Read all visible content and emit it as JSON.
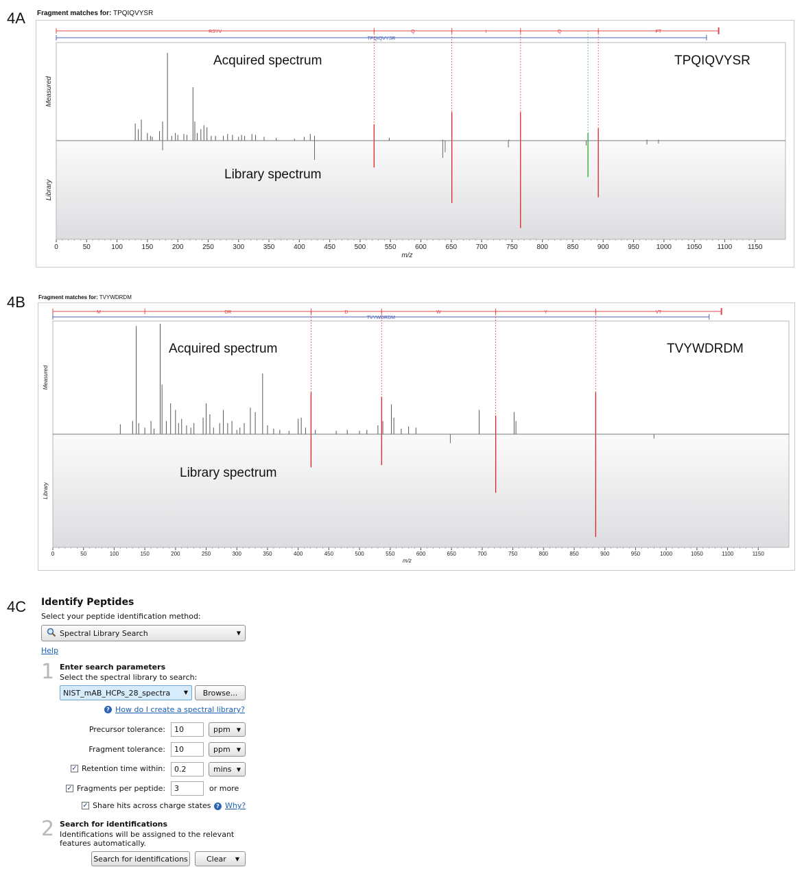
{
  "panels": {
    "a": {
      "label": "4A",
      "fragment_title_prefix": "Fragment matches for:",
      "peptide": "TPQIQVYSR",
      "acquired_label": "Acquired spectrum",
      "library_label": "Library spectrum",
      "peptide_label": "TPQIQVYSR",
      "measured_axis": "Measured",
      "library_axis": "Library",
      "xlabel": "m/z"
    },
    "b": {
      "label": "4B",
      "fragment_title_prefix": "Fragment matches for:",
      "peptide": "TVYWDRDM",
      "acquired_label": "Acquired spectrum",
      "library_label": "Library spectrum",
      "peptide_label": "TVYWDRDM",
      "measured_axis": "Measured",
      "library_axis": "Library",
      "xlabel": "m/z"
    },
    "c": {
      "label": "4C"
    }
  },
  "chart_data": [
    {
      "id": "chart-a",
      "type": "bar",
      "title": "Fragment matches for: TPQIQVYSR",
      "xlabel": "m/z",
      "xlim": [
        0,
        1200
      ],
      "xticks": [
        0,
        50,
        100,
        150,
        200,
        250,
        300,
        350,
        400,
        450,
        500,
        550,
        600,
        650,
        700,
        750,
        800,
        850,
        900,
        950,
        1000,
        1050,
        1100,
        1150
      ],
      "ylim_measured": [
        0,
        1
      ],
      "ylim_library": [
        0,
        1
      ],
      "ion_red_segments": [
        [
          0,
          523,
          "RSYV"
        ],
        [
          523,
          651,
          "Q"
        ],
        [
          651,
          764,
          "I"
        ],
        [
          764,
          892,
          "Q"
        ],
        [
          892,
          1090,
          "PT"
        ]
      ],
      "ion_blue": [
        0,
        1070,
        "TPQIQVYSR"
      ],
      "matched_ions": [
        {
          "mz": 523,
          "measured": 0.17,
          "library": 0.28,
          "color": "#e02020"
        },
        {
          "mz": 651,
          "measured": 0.3,
          "library": 0.65,
          "color": "#e02020"
        },
        {
          "mz": 764,
          "measured": 0.3,
          "library": 0.91,
          "color": "#e02020"
        },
        {
          "mz": 875,
          "measured": 0.08,
          "library": 0.38,
          "color": "#22aa22"
        },
        {
          "mz": 892,
          "measured": 0.13,
          "library": 0.59,
          "color": "#e02020"
        }
      ],
      "measured_peaks": [
        [
          130,
          0.18
        ],
        [
          135,
          0.12
        ],
        [
          140,
          0.22
        ],
        [
          150,
          0.08
        ],
        [
          155,
          0.05
        ],
        [
          158,
          0.04
        ],
        [
          170,
          0.1
        ],
        [
          175,
          0.2
        ],
        [
          183,
          0.92
        ],
        [
          190,
          0.05
        ],
        [
          196,
          0.08
        ],
        [
          200,
          0.06
        ],
        [
          210,
          0.07
        ],
        [
          215,
          0.06
        ],
        [
          225,
          0.56
        ],
        [
          228,
          0.2
        ],
        [
          232,
          0.08
        ],
        [
          238,
          0.12
        ],
        [
          243,
          0.16
        ],
        [
          248,
          0.14
        ],
        [
          255,
          0.05
        ],
        [
          262,
          0.05
        ],
        [
          275,
          0.05
        ],
        [
          282,
          0.07
        ],
        [
          290,
          0.06
        ],
        [
          300,
          0.04
        ],
        [
          305,
          0.06
        ],
        [
          310,
          0.05
        ],
        [
          322,
          0.07
        ],
        [
          328,
          0.06
        ],
        [
          342,
          0.04
        ],
        [
          362,
          0.03
        ],
        [
          392,
          0.02
        ],
        [
          408,
          0.04
        ],
        [
          418,
          0.07
        ],
        [
          425,
          0.05
        ],
        [
          548,
          0.03
        ],
        [
          636,
          0.01
        ],
        [
          745,
          0.01
        ],
        [
          972,
          0.01
        ],
        [
          991,
          0.01
        ]
      ],
      "library_peaks": [
        [
          175,
          0.1
        ],
        [
          425,
          0.2
        ],
        [
          636,
          0.18
        ],
        [
          640,
          0.12
        ],
        [
          744,
          0.07
        ],
        [
          872,
          0.05
        ],
        [
          972,
          0.04
        ],
        [
          991,
          0.03
        ]
      ]
    },
    {
      "id": "chart-b",
      "type": "bar",
      "title": "Fragment matches for: TVYWDRDM",
      "xlabel": "m/z",
      "xlim": [
        0,
        1200
      ],
      "xticks": [
        0,
        50,
        100,
        150,
        200,
        250,
        300,
        350,
        400,
        450,
        500,
        550,
        600,
        650,
        700,
        750,
        800,
        850,
        900,
        950,
        1000,
        1050,
        1100,
        1150
      ],
      "ylim_measured": [
        0,
        1
      ],
      "ylim_library": [
        0,
        1
      ],
      "ion_red_segments": [
        [
          0,
          150,
          "M"
        ],
        [
          150,
          421,
          "DR"
        ],
        [
          421,
          536,
          "D"
        ],
        [
          536,
          722,
          "W"
        ],
        [
          722,
          885,
          "Y"
        ],
        [
          885,
          1090,
          "VT"
        ]
      ],
      "ion_blue": [
        0,
        1070,
        "TVYWDRDM"
      ],
      "matched_ions": [
        {
          "mz": 421,
          "measured": 0.38,
          "library": 0.3,
          "color": "#e02020"
        },
        {
          "mz": 536,
          "measured": 0.34,
          "library": 0.28,
          "color": "#e02020"
        },
        {
          "mz": 722,
          "measured": 0.17,
          "library": 0.53,
          "color": "#e02020"
        },
        {
          "mz": 885,
          "measured": 0.38,
          "library": 0.93,
          "color": "#e02020"
        }
      ],
      "measured_peaks": [
        [
          110,
          0.09
        ],
        [
          130,
          0.12
        ],
        [
          136,
          0.98
        ],
        [
          140,
          0.1
        ],
        [
          150,
          0.06
        ],
        [
          160,
          0.12
        ],
        [
          165,
          0.05
        ],
        [
          175,
          1.0
        ],
        [
          178,
          0.45
        ],
        [
          185,
          0.12
        ],
        [
          192,
          0.28
        ],
        [
          200,
          0.22
        ],
        [
          205,
          0.1
        ],
        [
          210,
          0.14
        ],
        [
          218,
          0.08
        ],
        [
          225,
          0.06
        ],
        [
          230,
          0.1
        ],
        [
          245,
          0.15
        ],
        [
          250,
          0.28
        ],
        [
          256,
          0.18
        ],
        [
          262,
          0.06
        ],
        [
          272,
          0.1
        ],
        [
          278,
          0.22
        ],
        [
          285,
          0.1
        ],
        [
          292,
          0.12
        ],
        [
          300,
          0.04
        ],
        [
          305,
          0.06
        ],
        [
          312,
          0.1
        ],
        [
          322,
          0.24
        ],
        [
          330,
          0.2
        ],
        [
          342,
          0.55
        ],
        [
          350,
          0.08
        ],
        [
          360,
          0.05
        ],
        [
          370,
          0.04
        ],
        [
          385,
          0.03
        ],
        [
          400,
          0.14
        ],
        [
          405,
          0.15
        ],
        [
          412,
          0.06
        ],
        [
          428,
          0.04
        ],
        [
          462,
          0.03
        ],
        [
          480,
          0.04
        ],
        [
          500,
          0.03
        ],
        [
          512,
          0.04
        ],
        [
          530,
          0.08
        ],
        [
          538,
          0.12
        ],
        [
          552,
          0.27
        ],
        [
          556,
          0.15
        ],
        [
          568,
          0.05
        ],
        [
          580,
          0.07
        ],
        [
          592,
          0.06
        ],
        [
          695,
          0.22
        ],
        [
          752,
          0.2
        ],
        [
          755,
          0.12
        ]
      ],
      "library_peaks": [
        [
          648,
          0.08
        ],
        [
          980,
          0.04
        ]
      ]
    }
  ],
  "identify": {
    "title": "Identify Peptides",
    "subtitle": "Select your peptide identification method:",
    "method_value": "Spectral Library Search",
    "search_icon": "search-icon",
    "help_link": "Help",
    "step1_num": "1",
    "step1_heading": "Enter search parameters",
    "step1_text": "Select the spectral library to search:",
    "library_value": "NIST_mAB_HCPs_28_spectra",
    "browse_label": "Browse...",
    "create_library_link": "How do I create a spectral library?",
    "precursor_label": "Precursor tolerance:",
    "precursor_value": "10",
    "precursor_unit": "ppm",
    "fragment_label": "Fragment tolerance:",
    "fragment_value": "10",
    "fragment_unit": "ppm",
    "retention_label": "Retention time within:",
    "retention_value": "0.2",
    "retention_unit": "mins",
    "fragments_label": "Fragments per peptide:",
    "fragments_value": "3",
    "fragments_suffix": "or more",
    "share_label": "Share hits across charge states",
    "why_link": "Why?",
    "step2_num": "2",
    "step2_heading": "Search for identifications",
    "step2_text_1": "Identifications will be assigned to the relevant",
    "step2_text_2": "features automatically.",
    "search_button": "Search for identifications",
    "clear_button": "Clear"
  }
}
